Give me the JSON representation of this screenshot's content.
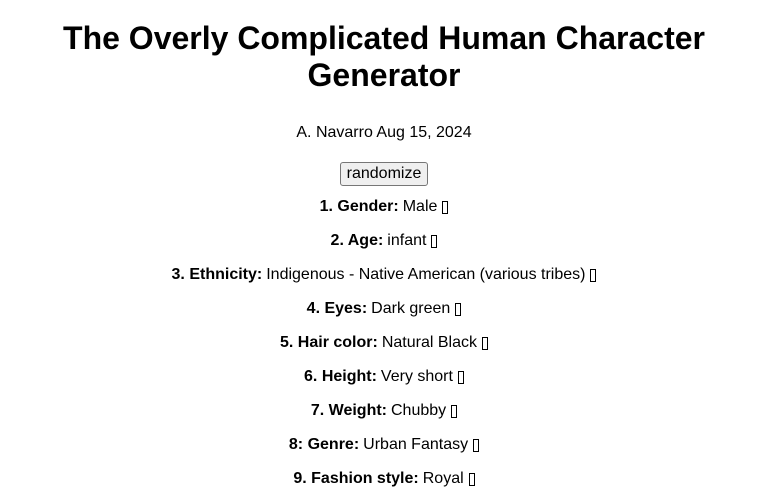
{
  "title": "The Overly Complicated Human Character Generator",
  "byline": "A. Navarro Aug 15, 2024",
  "randomize_label": "randomize",
  "reroll_icon": "reroll-icon",
  "attributes": [
    {
      "label": "1. Gender:",
      "value": "Male"
    },
    {
      "label": "2. Age:",
      "value": "infant"
    },
    {
      "label": "3. Ethnicity:",
      "value": "Indigenous - Native American (various tribes)"
    },
    {
      "label": "4. Eyes:",
      "value": "Dark green"
    },
    {
      "label": "5. Hair color:",
      "value": "Natural Black"
    },
    {
      "label": "6. Height:",
      "value": "Very short"
    },
    {
      "label": "7. Weight:",
      "value": "Chubby"
    },
    {
      "label": "8: Genre:",
      "value": "Urban Fantasy"
    },
    {
      "label": "9. Fashion style:",
      "value": "Royal"
    }
  ]
}
